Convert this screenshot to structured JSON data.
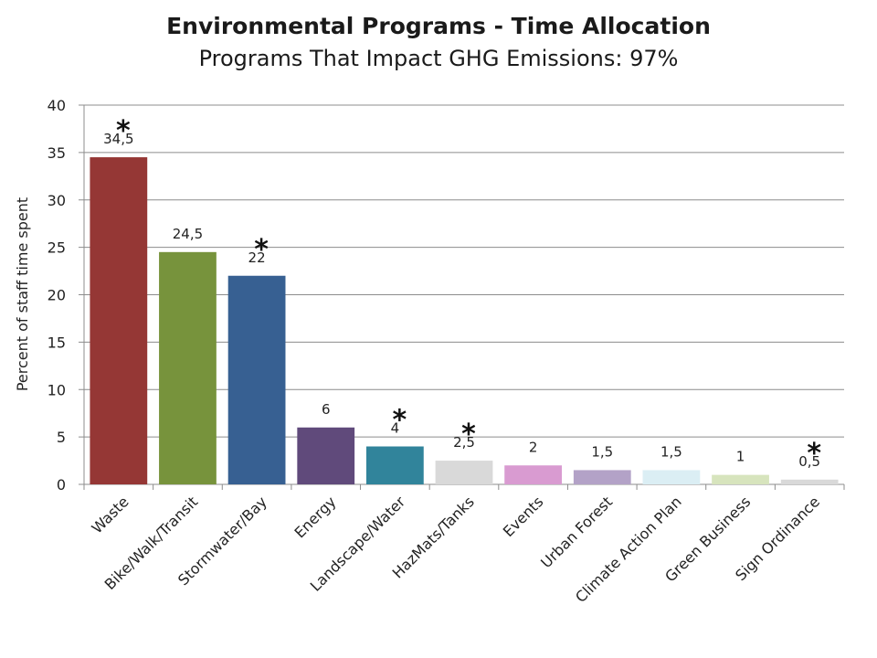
{
  "chart_data": {
    "type": "bar",
    "title": "Environmental Programs - Time Allocation",
    "subtitle": "Programs That Impact GHG Emissions: 97%",
    "xlabel": "",
    "ylabel": "Percent of staff time spent",
    "ylim": [
      0,
      40
    ],
    "yticks": [
      0,
      5,
      10,
      15,
      20,
      25,
      30,
      35,
      40
    ],
    "grid": true,
    "legend": "none",
    "categories": [
      "Waste",
      "Bike/Walk/Transit",
      "Stormwater/Bay",
      "Energy",
      "Landscape/Water",
      "HazMats/Tanks",
      "Events",
      "Urban Forest",
      "Climate Action Plan",
      "Green Business",
      "Sign Ordinance"
    ],
    "values": [
      34.5,
      24.5,
      22,
      6,
      4,
      2.5,
      2,
      1.5,
      1.5,
      1,
      0.5
    ],
    "value_labels": [
      "34,5",
      "24,5",
      "22",
      "6",
      "4",
      "2,5",
      "2",
      "1,5",
      "1,5",
      "1",
      "0,5"
    ],
    "colors": [
      "#953735",
      "#77933c",
      "#376092",
      "#604a7b",
      "#31849b",
      "#d9d9d9",
      "#d99bd1",
      "#b3a2c7",
      "#dbeef4",
      "#d7e4bd",
      "#d9d9d9"
    ],
    "starred": [
      true,
      false,
      true,
      false,
      true,
      true,
      false,
      false,
      false,
      false,
      true
    ],
    "star_symbol": "*"
  }
}
